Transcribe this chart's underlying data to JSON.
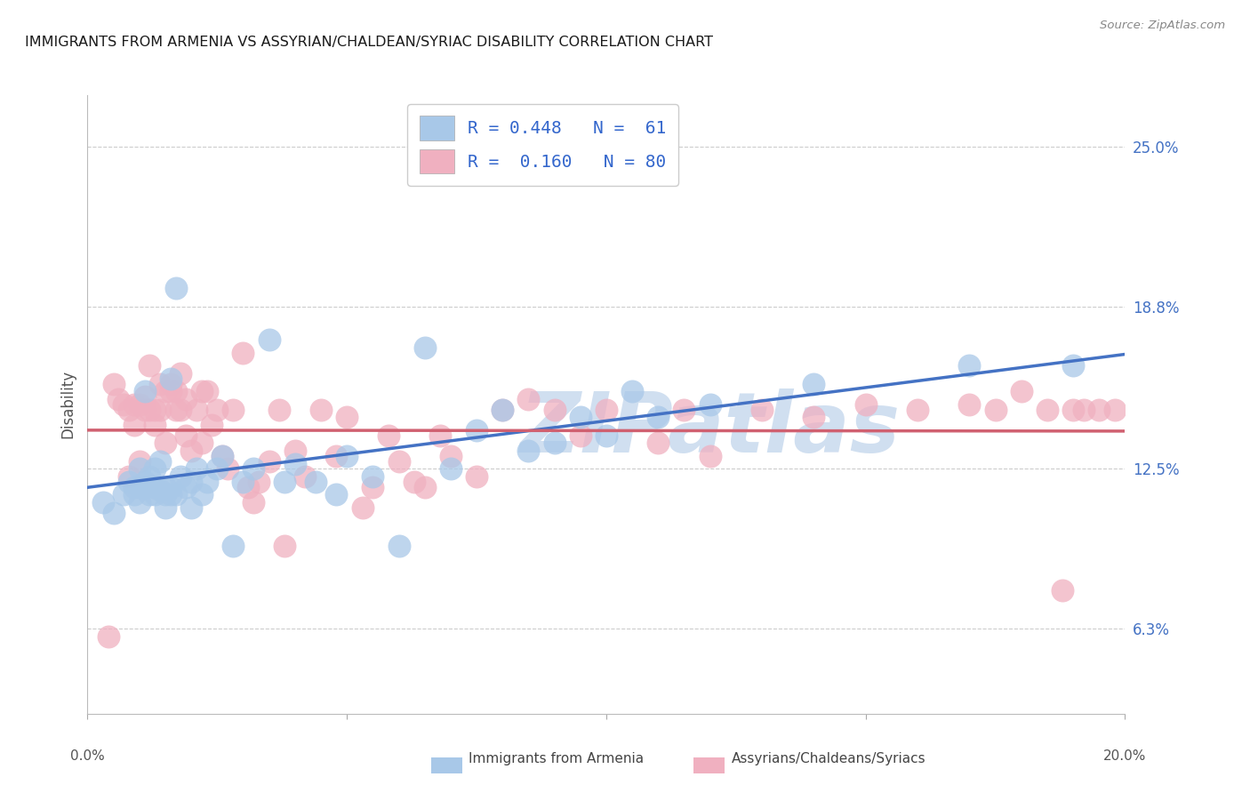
{
  "title": "IMMIGRANTS FROM ARMENIA VS ASSYRIAN/CHALDEAN/SYRIAC DISABILITY CORRELATION CHART",
  "source": "Source: ZipAtlas.com",
  "ylabel": "Disability",
  "ylabel_ticks": [
    "6.3%",
    "12.5%",
    "18.8%",
    "25.0%"
  ],
  "ytick_vals": [
    0.063,
    0.125,
    0.188,
    0.25
  ],
  "xlim": [
    0.0,
    0.2
  ],
  "ylim": [
    0.03,
    0.27
  ],
  "legend_line1": "R = 0.448   N =  61",
  "legend_line2": "R =  0.160   N = 80",
  "blue_color": "#a8c8e8",
  "pink_color": "#f0b0c0",
  "blue_line_color": "#4472c4",
  "pink_line_color": "#d06070",
  "watermark": "ZIPatlas",
  "watermark_color": "#d0dff0",
  "background_color": "#ffffff",
  "title_color": "#1a1a1a",
  "right_tick_color": "#4472c4",
  "grid_color": "#cccccc",
  "legend_text_color": "#3366cc",
  "blue_scatter_x": [
    0.003,
    0.005,
    0.007,
    0.008,
    0.009,
    0.009,
    0.01,
    0.01,
    0.01,
    0.011,
    0.011,
    0.011,
    0.012,
    0.012,
    0.013,
    0.013,
    0.013,
    0.014,
    0.014,
    0.015,
    0.015,
    0.015,
    0.016,
    0.016,
    0.016,
    0.017,
    0.017,
    0.018,
    0.019,
    0.02,
    0.02,
    0.021,
    0.022,
    0.023,
    0.025,
    0.026,
    0.028,
    0.03,
    0.032,
    0.035,
    0.038,
    0.04,
    0.044,
    0.048,
    0.05,
    0.055,
    0.06,
    0.065,
    0.07,
    0.075,
    0.08,
    0.085,
    0.09,
    0.095,
    0.1,
    0.105,
    0.11,
    0.12,
    0.14,
    0.17,
    0.19
  ],
  "blue_scatter_y": [
    0.112,
    0.108,
    0.115,
    0.12,
    0.118,
    0.115,
    0.125,
    0.118,
    0.112,
    0.12,
    0.155,
    0.118,
    0.115,
    0.122,
    0.118,
    0.125,
    0.115,
    0.117,
    0.128,
    0.11,
    0.118,
    0.115,
    0.16,
    0.115,
    0.118,
    0.195,
    0.115,
    0.122,
    0.118,
    0.11,
    0.12,
    0.125,
    0.115,
    0.12,
    0.125,
    0.13,
    0.095,
    0.12,
    0.125,
    0.175,
    0.12,
    0.127,
    0.12,
    0.115,
    0.13,
    0.122,
    0.095,
    0.172,
    0.125,
    0.14,
    0.148,
    0.132,
    0.135,
    0.145,
    0.138,
    0.155,
    0.145,
    0.15,
    0.158,
    0.165,
    0.165
  ],
  "pink_scatter_x": [
    0.004,
    0.005,
    0.006,
    0.007,
    0.008,
    0.008,
    0.009,
    0.009,
    0.01,
    0.01,
    0.011,
    0.011,
    0.012,
    0.012,
    0.013,
    0.013,
    0.014,
    0.014,
    0.015,
    0.015,
    0.016,
    0.016,
    0.017,
    0.017,
    0.018,
    0.018,
    0.019,
    0.019,
    0.02,
    0.021,
    0.022,
    0.022,
    0.023,
    0.024,
    0.025,
    0.026,
    0.027,
    0.028,
    0.03,
    0.031,
    0.032,
    0.033,
    0.035,
    0.037,
    0.038,
    0.04,
    0.042,
    0.045,
    0.048,
    0.05,
    0.053,
    0.055,
    0.058,
    0.06,
    0.063,
    0.065,
    0.068,
    0.07,
    0.075,
    0.08,
    0.085,
    0.09,
    0.095,
    0.1,
    0.11,
    0.115,
    0.12,
    0.13,
    0.14,
    0.15,
    0.16,
    0.17,
    0.175,
    0.18,
    0.185,
    0.188,
    0.19,
    0.192,
    0.195,
    0.198
  ],
  "pink_scatter_y": [
    0.06,
    0.158,
    0.152,
    0.15,
    0.122,
    0.148,
    0.142,
    0.15,
    0.128,
    0.15,
    0.148,
    0.153,
    0.148,
    0.165,
    0.142,
    0.148,
    0.158,
    0.148,
    0.135,
    0.155,
    0.158,
    0.155,
    0.155,
    0.148,
    0.148,
    0.162,
    0.138,
    0.152,
    0.132,
    0.148,
    0.135,
    0.155,
    0.155,
    0.142,
    0.148,
    0.13,
    0.125,
    0.148,
    0.17,
    0.118,
    0.112,
    0.12,
    0.128,
    0.148,
    0.095,
    0.132,
    0.122,
    0.148,
    0.13,
    0.145,
    0.11,
    0.118,
    0.138,
    0.128,
    0.12,
    0.118,
    0.138,
    0.13,
    0.122,
    0.148,
    0.152,
    0.148,
    0.138,
    0.148,
    0.135,
    0.148,
    0.13,
    0.148,
    0.145,
    0.15,
    0.148,
    0.15,
    0.148,
    0.155,
    0.148,
    0.078,
    0.148,
    0.148,
    0.148,
    0.148
  ]
}
